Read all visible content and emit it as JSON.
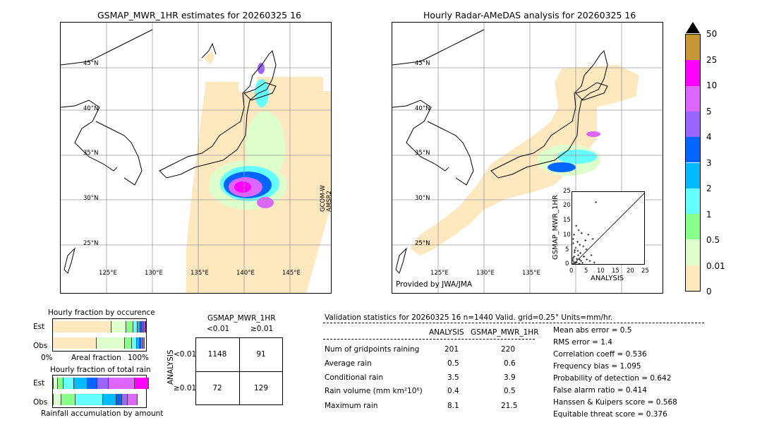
{
  "left_map": {
    "title": "GSMAP_MWR_1HR estimates for 20260325 16",
    "lat_labels": [
      "45°N",
      "40°N",
      "35°N",
      "30°N",
      "25°N"
    ],
    "lon_labels": [
      "125°E",
      "130°E",
      "135°E",
      "140°E",
      "145°E"
    ],
    "satellite_label": "GCOM-W\nAMSR2"
  },
  "right_map": {
    "title": "Hourly Radar-AMeDAS analysis for 20260325 16",
    "lat_labels": [
      "45°N",
      "40°N",
      "35°N",
      "30°N",
      "25°N"
    ],
    "lon_labels": [
      "125°E",
      "130°E",
      "135°E"
    ],
    "credit": "Provided by JWA/JMA"
  },
  "colorbar": {
    "labels": [
      "50",
      "25",
      "10",
      "5",
      "4",
      "3",
      "2",
      "1",
      "0.5",
      "0.01",
      "0"
    ],
    "colors": [
      "#c89632",
      "#ff00ff",
      "#dd66ff",
      "#9966ff",
      "#0066ff",
      "#00bbff",
      "#66ffff",
      "#88ff88",
      "#ddffcc",
      "#fde8bf"
    ]
  },
  "chart_data": [
    {
      "type": "scatter",
      "title": "",
      "xlabel": "ANALYSIS",
      "ylabel": "GSMAP_MWR_1HR",
      "xlim": [
        0,
        25
      ],
      "ylim": [
        0,
        25
      ],
      "ticks": [
        "0",
        "5",
        "10",
        "15",
        "20",
        "25"
      ],
      "points": [
        [
          0.2,
          0.4
        ],
        [
          0.5,
          1.2
        ],
        [
          1.0,
          0.3
        ],
        [
          0.3,
          2.5
        ],
        [
          1.5,
          1.0
        ],
        [
          2.0,
          3.5
        ],
        [
          0.8,
          4.5
        ],
        [
          1.2,
          6.0
        ],
        [
          2.5,
          2.0
        ],
        [
          3.0,
          1.5
        ],
        [
          0.4,
          7.5
        ],
        [
          1.8,
          8.0
        ],
        [
          0.6,
          10.5
        ],
        [
          2.2,
          12.0
        ],
        [
          0.9,
          5.2
        ],
        [
          3.5,
          0.8
        ],
        [
          4.0,
          3.0
        ],
        [
          5.0,
          2.0
        ],
        [
          6.0,
          1.5
        ],
        [
          1.1,
          0.9
        ],
        [
          0.2,
          1.8
        ],
        [
          0.7,
          3.0
        ],
        [
          2.8,
          4.2
        ],
        [
          4.5,
          8.5
        ],
        [
          5.5,
          10.5
        ],
        [
          7.0,
          9.0
        ],
        [
          3.8,
          6.5
        ],
        [
          1.6,
          2.2
        ],
        [
          2.4,
          0.6
        ],
        [
          0.5,
          0.5
        ],
        [
          8.1,
          21.5
        ],
        [
          6.5,
          3.5
        ],
        [
          4.8,
          5.5
        ],
        [
          3.2,
          11.0
        ],
        [
          1.4,
          13.5
        ],
        [
          0.3,
          9.0
        ],
        [
          2.6,
          7.0
        ],
        [
          1.9,
          5.0
        ],
        [
          0.1,
          0.2
        ],
        [
          7.5,
          1.0
        ]
      ]
    },
    {
      "type": "bar",
      "title": "Hourly fraction by occurence",
      "categories": [
        "Est",
        "Obs"
      ],
      "xlabel": "Areal fraction",
      "x_tick_labels": [
        "0%",
        "100%"
      ],
      "series": [
        {
          "color": "#fde8bf",
          "values": [
            0.63,
            0.47
          ]
        },
        {
          "color": "#ddffcc",
          "values": [
            0.16,
            0.3
          ]
        },
        {
          "color": "#88ff88",
          "values": [
            0.07,
            0.08
          ]
        },
        {
          "color": "#66ffff",
          "values": [
            0.05,
            0.05
          ]
        },
        {
          "color": "#00bbff",
          "values": [
            0.03,
            0.03
          ]
        },
        {
          "color": "#0066ff",
          "values": [
            0.02,
            0.02
          ]
        },
        {
          "color": "#9966ff",
          "values": [
            0.02,
            0.02
          ]
        },
        {
          "color": "#dd66ff",
          "values": [
            0.01,
            0.015
          ]
        },
        {
          "color": "#ff00ff",
          "values": [
            0.01,
            0.0
          ]
        }
      ]
    },
    {
      "type": "bar",
      "title": "Hourly fraction of total rain",
      "categories": [
        "Est",
        "Obs"
      ],
      "xlabel": "Rainfall accumulation by amount",
      "series": [
        {
          "color": "#fde8bf",
          "values": [
            0.01,
            0.01
          ]
        },
        {
          "color": "#ddffcc",
          "values": [
            0.04,
            0.08
          ]
        },
        {
          "color": "#88ff88",
          "values": [
            0.06,
            0.15
          ]
        },
        {
          "color": "#66ffff",
          "values": [
            0.12,
            0.3
          ]
        },
        {
          "color": "#00bbff",
          "values": [
            0.14,
            0.14
          ]
        },
        {
          "color": "#0066ff",
          "values": [
            0.11,
            0.06
          ]
        },
        {
          "color": "#9966ff",
          "values": [
            0.12,
            0.06
          ]
        },
        {
          "color": "#dd66ff",
          "values": [
            0.28,
            0.11
          ]
        },
        {
          "color": "#ff00ff",
          "values": [
            0.15,
            0.0
          ]
        }
      ]
    },
    {
      "type": "table",
      "title": "GSMAP_MWR_1HR",
      "col_headers": [
        "<0.01",
        "≥0.01"
      ],
      "row_headers": [
        "<0.01",
        "≥0.01"
      ],
      "row_axis_label": "ANALYSIS",
      "cells": [
        [
          "1148",
          "91"
        ],
        [
          "72",
          "129"
        ]
      ]
    }
  ],
  "validation": {
    "header": "Validation statistics for 20260325 16  n=1440 Valid. grid=0.25° Units=mm/hr.",
    "col_analysis": "ANALYSIS",
    "col_gsmap": "GSMAP_MWR_1HR",
    "rows": [
      {
        "label": "Num of gridpoints raining",
        "analysis": "201",
        "gsmap": "220"
      },
      {
        "label": "Average rain",
        "analysis": "0.5",
        "gsmap": "0.6"
      },
      {
        "label": "Conditional rain",
        "analysis": "3.5",
        "gsmap": "3.9"
      },
      {
        "label": "Rain volume (mm km²10⁶)",
        "analysis": "0.4",
        "gsmap": "0.5"
      },
      {
        "label": "Maximum rain",
        "analysis": "8.1",
        "gsmap": "21.5"
      }
    ],
    "scores": [
      "Mean abs error =    0.5",
      "RMS error =    1.4",
      "Correlation coeff =  0.536",
      "Frequency bias =  1.095",
      "Probability of detection =  0.642",
      "False alarm ratio =  0.414",
      "Hanssen & Kuipers score =  0.568",
      "Equitable threat score =  0.376"
    ]
  }
}
